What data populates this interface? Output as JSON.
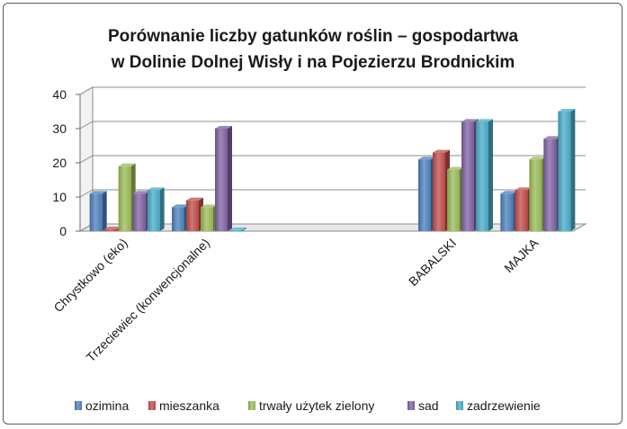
{
  "chart_data": {
    "type": "bar",
    "title_lines": [
      "Porównanie liczby gatunków roślin – gospodartwa",
      "w  Dolinie Dolnej Wisły i na Pojezierzu Brodnickim"
    ],
    "categories": [
      "Chrystkowo (eko)",
      "Trzeciewiec (konwencjonalne)",
      "",
      "",
      "BABALSKI",
      "MAJKA"
    ],
    "series": [
      {
        "name": "ozimina",
        "color": "#4a7ebb",
        "values": [
          11,
          7,
          null,
          null,
          21,
          11
        ]
      },
      {
        "name": "mieszanka",
        "color": "#be4b48",
        "values": [
          0.5,
          9,
          null,
          null,
          23,
          12
        ]
      },
      {
        "name": "trwały użytek zielony",
        "color": "#98b954",
        "values": [
          19,
          7,
          null,
          null,
          18,
          21
        ]
      },
      {
        "name": "sad",
        "color": "#7d60a0",
        "values": [
          11,
          30,
          null,
          null,
          32,
          27
        ]
      },
      {
        "name": "zadrzewienie",
        "color": "#46aac5",
        "values": [
          12,
          0.3,
          null,
          null,
          32,
          35
        ]
      }
    ],
    "ylim": [
      0,
      40
    ],
    "yticks": [
      0,
      10,
      20,
      30,
      40
    ],
    "grid": true,
    "legend": "bottom"
  }
}
